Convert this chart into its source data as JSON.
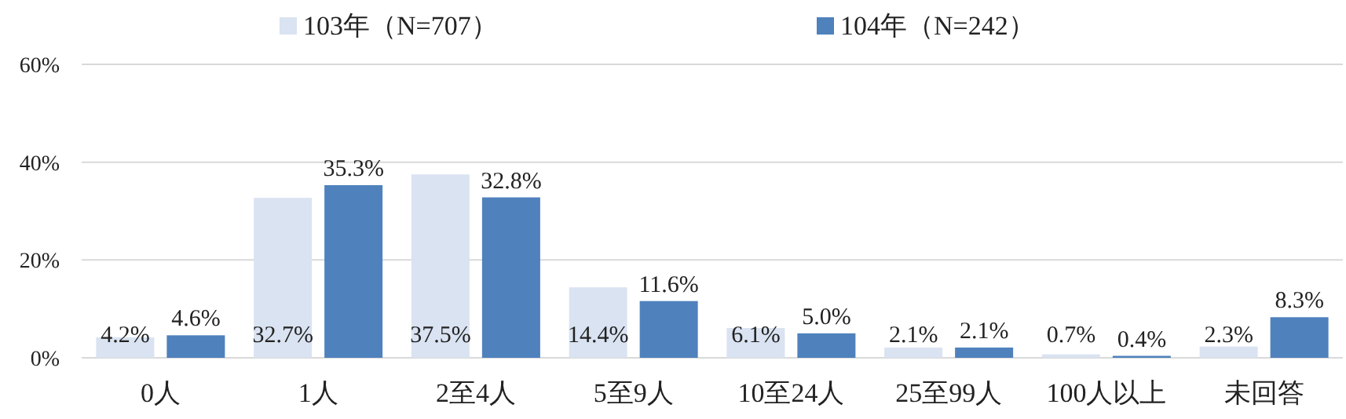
{
  "chart_data": {
    "type": "bar",
    "categories": [
      "0人",
      "1人",
      "2至4人",
      "5至9人",
      "10至24人",
      "25至99人",
      "100人以上",
      "未回答"
    ],
    "series": [
      {
        "name": "103年（N=707）",
        "color": "#dae3f1",
        "values": [
          4.2,
          32.7,
          37.5,
          14.4,
          6.1,
          2.1,
          0.7,
          2.3
        ],
        "value_labels": [
          "4.2%",
          "32.7%",
          "37.5%",
          "14.4%",
          "6.1%",
          "2.1%",
          "0.7%",
          "2.3%"
        ]
      },
      {
        "name": "104年（N=242）",
        "color": "#4f81bd",
        "values": [
          4.6,
          35.3,
          32.8,
          11.6,
          5.0,
          2.1,
          0.4,
          8.3
        ],
        "value_labels": [
          "4.6%",
          "35.3%",
          "32.8%",
          "11.6%",
          "5.0%",
          "2.1%",
          "0.4%",
          "8.3%"
        ]
      }
    ],
    "ylim": [
      0,
      60
    ],
    "yticks": [
      {
        "value": 0,
        "label": "0%"
      },
      {
        "value": 20,
        "label": "20%"
      },
      {
        "value": 40,
        "label": "40%"
      },
      {
        "value": 60,
        "label": "60%"
      }
    ],
    "grid": "y",
    "legend": "top"
  }
}
